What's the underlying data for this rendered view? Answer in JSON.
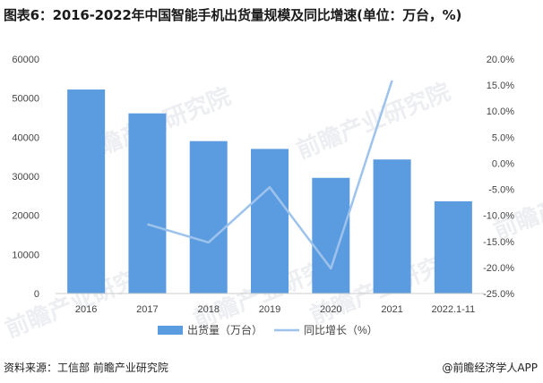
{
  "title": "图表6：2016-2022年中国智能手机出货量规模及同比增速(单位：万台，%)",
  "watermark_text": "前瞻产业研究院",
  "footer": {
    "source": "资料来源：工信部 前瞻产业研究院",
    "brand": "@前瞻经济学人APP"
  },
  "colors": {
    "bar": "#5b9be0",
    "line": "#9dc3ec",
    "axis_text": "#444444"
  },
  "chart_data": {
    "type": "bar",
    "categories": [
      "2016",
      "2017",
      "2018",
      "2019",
      "2020",
      "2021",
      "2022.1-11"
    ],
    "series": [
      {
        "name": "出货量（万台）",
        "type": "bar",
        "axis": "left",
        "values": [
          52200,
          46100,
          39000,
          37000,
          29600,
          34300,
          23600
        ]
      },
      {
        "name": "同比增长（%）",
        "type": "line",
        "axis": "right",
        "values": [
          null,
          -11.7,
          -15.2,
          -4.6,
          -20.2,
          15.9,
          null
        ]
      }
    ],
    "y_left": {
      "ylim": [
        0,
        60000
      ],
      "ticks": [
        "0",
        "10000",
        "20000",
        "30000",
        "40000",
        "50000",
        "60000"
      ]
    },
    "y_right": {
      "ylim": [
        -25,
        20
      ],
      "ticks": [
        "-25.0%",
        "-20.0%",
        "-15.0%",
        "-10.0%",
        "-5.0%",
        "0.0%",
        "5.0%",
        "10.0%",
        "15.0%",
        "20.0%"
      ]
    },
    "legend_position": "bottom",
    "grid": false
  }
}
